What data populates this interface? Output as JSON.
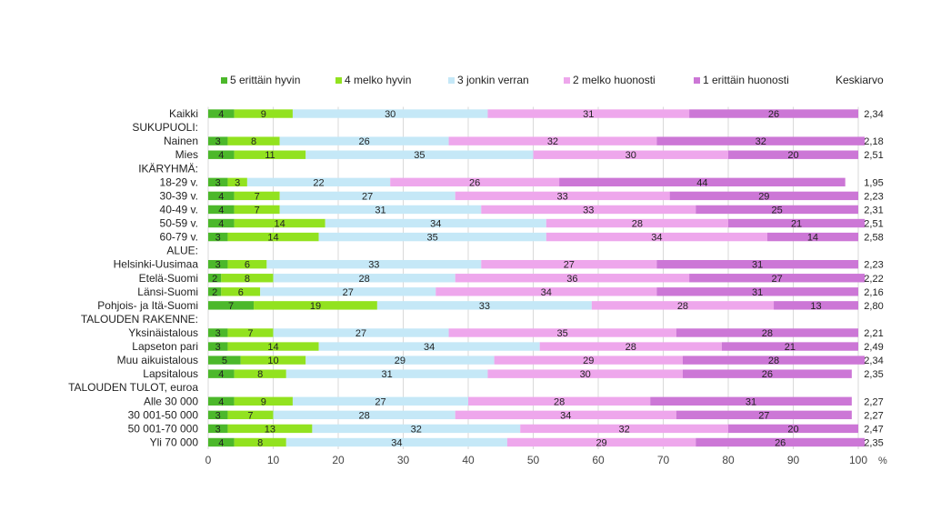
{
  "chart_data": {
    "type": "bar",
    "orientation": "horizontal",
    "stacked": true,
    "grid": true,
    "legend_position": "top",
    "xlim": [
      0,
      100
    ],
    "x_ticks": [
      "0",
      "10",
      "20",
      "30",
      "40",
      "50",
      "60",
      "70",
      "80",
      "90",
      "100"
    ],
    "x_unit": "%",
    "mean_header": "Keskiarvo",
    "series": [
      {
        "name": "5 erittäin hyvin",
        "color": "#4cb82b"
      },
      {
        "name": "4 melko hyvin",
        "color": "#92e21f"
      },
      {
        "name": "3 jonkin verran",
        "color": "#c5e8f7"
      },
      {
        "name": "2 melko huonosti",
        "color": "#eea7ec"
      },
      {
        "name": "1 erittäin huonosti",
        "color": "#cc77d6"
      }
    ],
    "rows": [
      {
        "label": "Kaikki",
        "values": [
          4,
          9,
          30,
          31,
          26
        ],
        "mean": "2,34"
      },
      {
        "label": "SUKUPUOLI:",
        "header": true
      },
      {
        "label": "Nainen",
        "values": [
          3,
          8,
          26,
          32,
          32
        ],
        "mean": "2,18"
      },
      {
        "label": "Mies",
        "values": [
          4,
          11,
          35,
          30,
          20
        ],
        "mean": "2,51"
      },
      {
        "label": "IKÄRYHMÄ:",
        "header": true
      },
      {
        "label": "18-29 v.",
        "values": [
          3,
          3,
          22,
          26,
          44
        ],
        "mean": "1,95"
      },
      {
        "label": "30-39 v.",
        "values": [
          4,
          7,
          27,
          33,
          29
        ],
        "mean": "2,23"
      },
      {
        "label": "40-49 v.",
        "values": [
          4,
          7,
          31,
          33,
          25
        ],
        "mean": "2,31"
      },
      {
        "label": "50-59 v.",
        "values": [
          4,
          14,
          34,
          28,
          21
        ],
        "mean": "2,51"
      },
      {
        "label": "60-79 v.",
        "values": [
          3,
          14,
          35,
          34,
          14
        ],
        "mean": "2,58"
      },
      {
        "label": "ALUE:",
        "header": true
      },
      {
        "label": "Helsinki-Uusimaa",
        "values": [
          3,
          6,
          33,
          27,
          31
        ],
        "mean": "2,23"
      },
      {
        "label": "Etelä-Suomi",
        "values": [
          2,
          8,
          28,
          36,
          27
        ],
        "mean": "2,22"
      },
      {
        "label": "Länsi-Suomi",
        "values": [
          2,
          6,
          27,
          34,
          31
        ],
        "mean": "2,16"
      },
      {
        "label": "Pohjois- ja Itä-Suomi",
        "values": [
          7,
          19,
          33,
          28,
          13
        ],
        "mean": "2,80"
      },
      {
        "label": "TALOUDEN RAKENNE:",
        "header": true
      },
      {
        "label": "Yksinäistalous",
        "values": [
          3,
          7,
          27,
          35,
          28
        ],
        "mean": "2,21"
      },
      {
        "label": "Lapseton pari",
        "values": [
          3,
          14,
          34,
          28,
          21
        ],
        "mean": "2,49"
      },
      {
        "label": "Muu aikuistalous",
        "values": [
          5,
          10,
          29,
          29,
          28
        ],
        "mean": "2,34"
      },
      {
        "label": "Lapsitalous",
        "values": [
          4,
          8,
          31,
          30,
          26
        ],
        "mean": "2,35"
      },
      {
        "label": "TALOUDEN TULOT, euroa",
        "header": true
      },
      {
        "label": "Alle 30 000",
        "values": [
          4,
          9,
          27,
          28,
          31
        ],
        "mean": "2,27"
      },
      {
        "label": "30 001-50 000",
        "values": [
          3,
          7,
          28,
          34,
          27
        ],
        "mean": "2,27"
      },
      {
        "label": "50 001-70 000",
        "values": [
          3,
          13,
          32,
          32,
          20
        ],
        "mean": "2,47"
      },
      {
        "label": "Yli 70 000",
        "values": [
          4,
          8,
          34,
          29,
          26
        ],
        "mean": "2,35"
      }
    ]
  }
}
